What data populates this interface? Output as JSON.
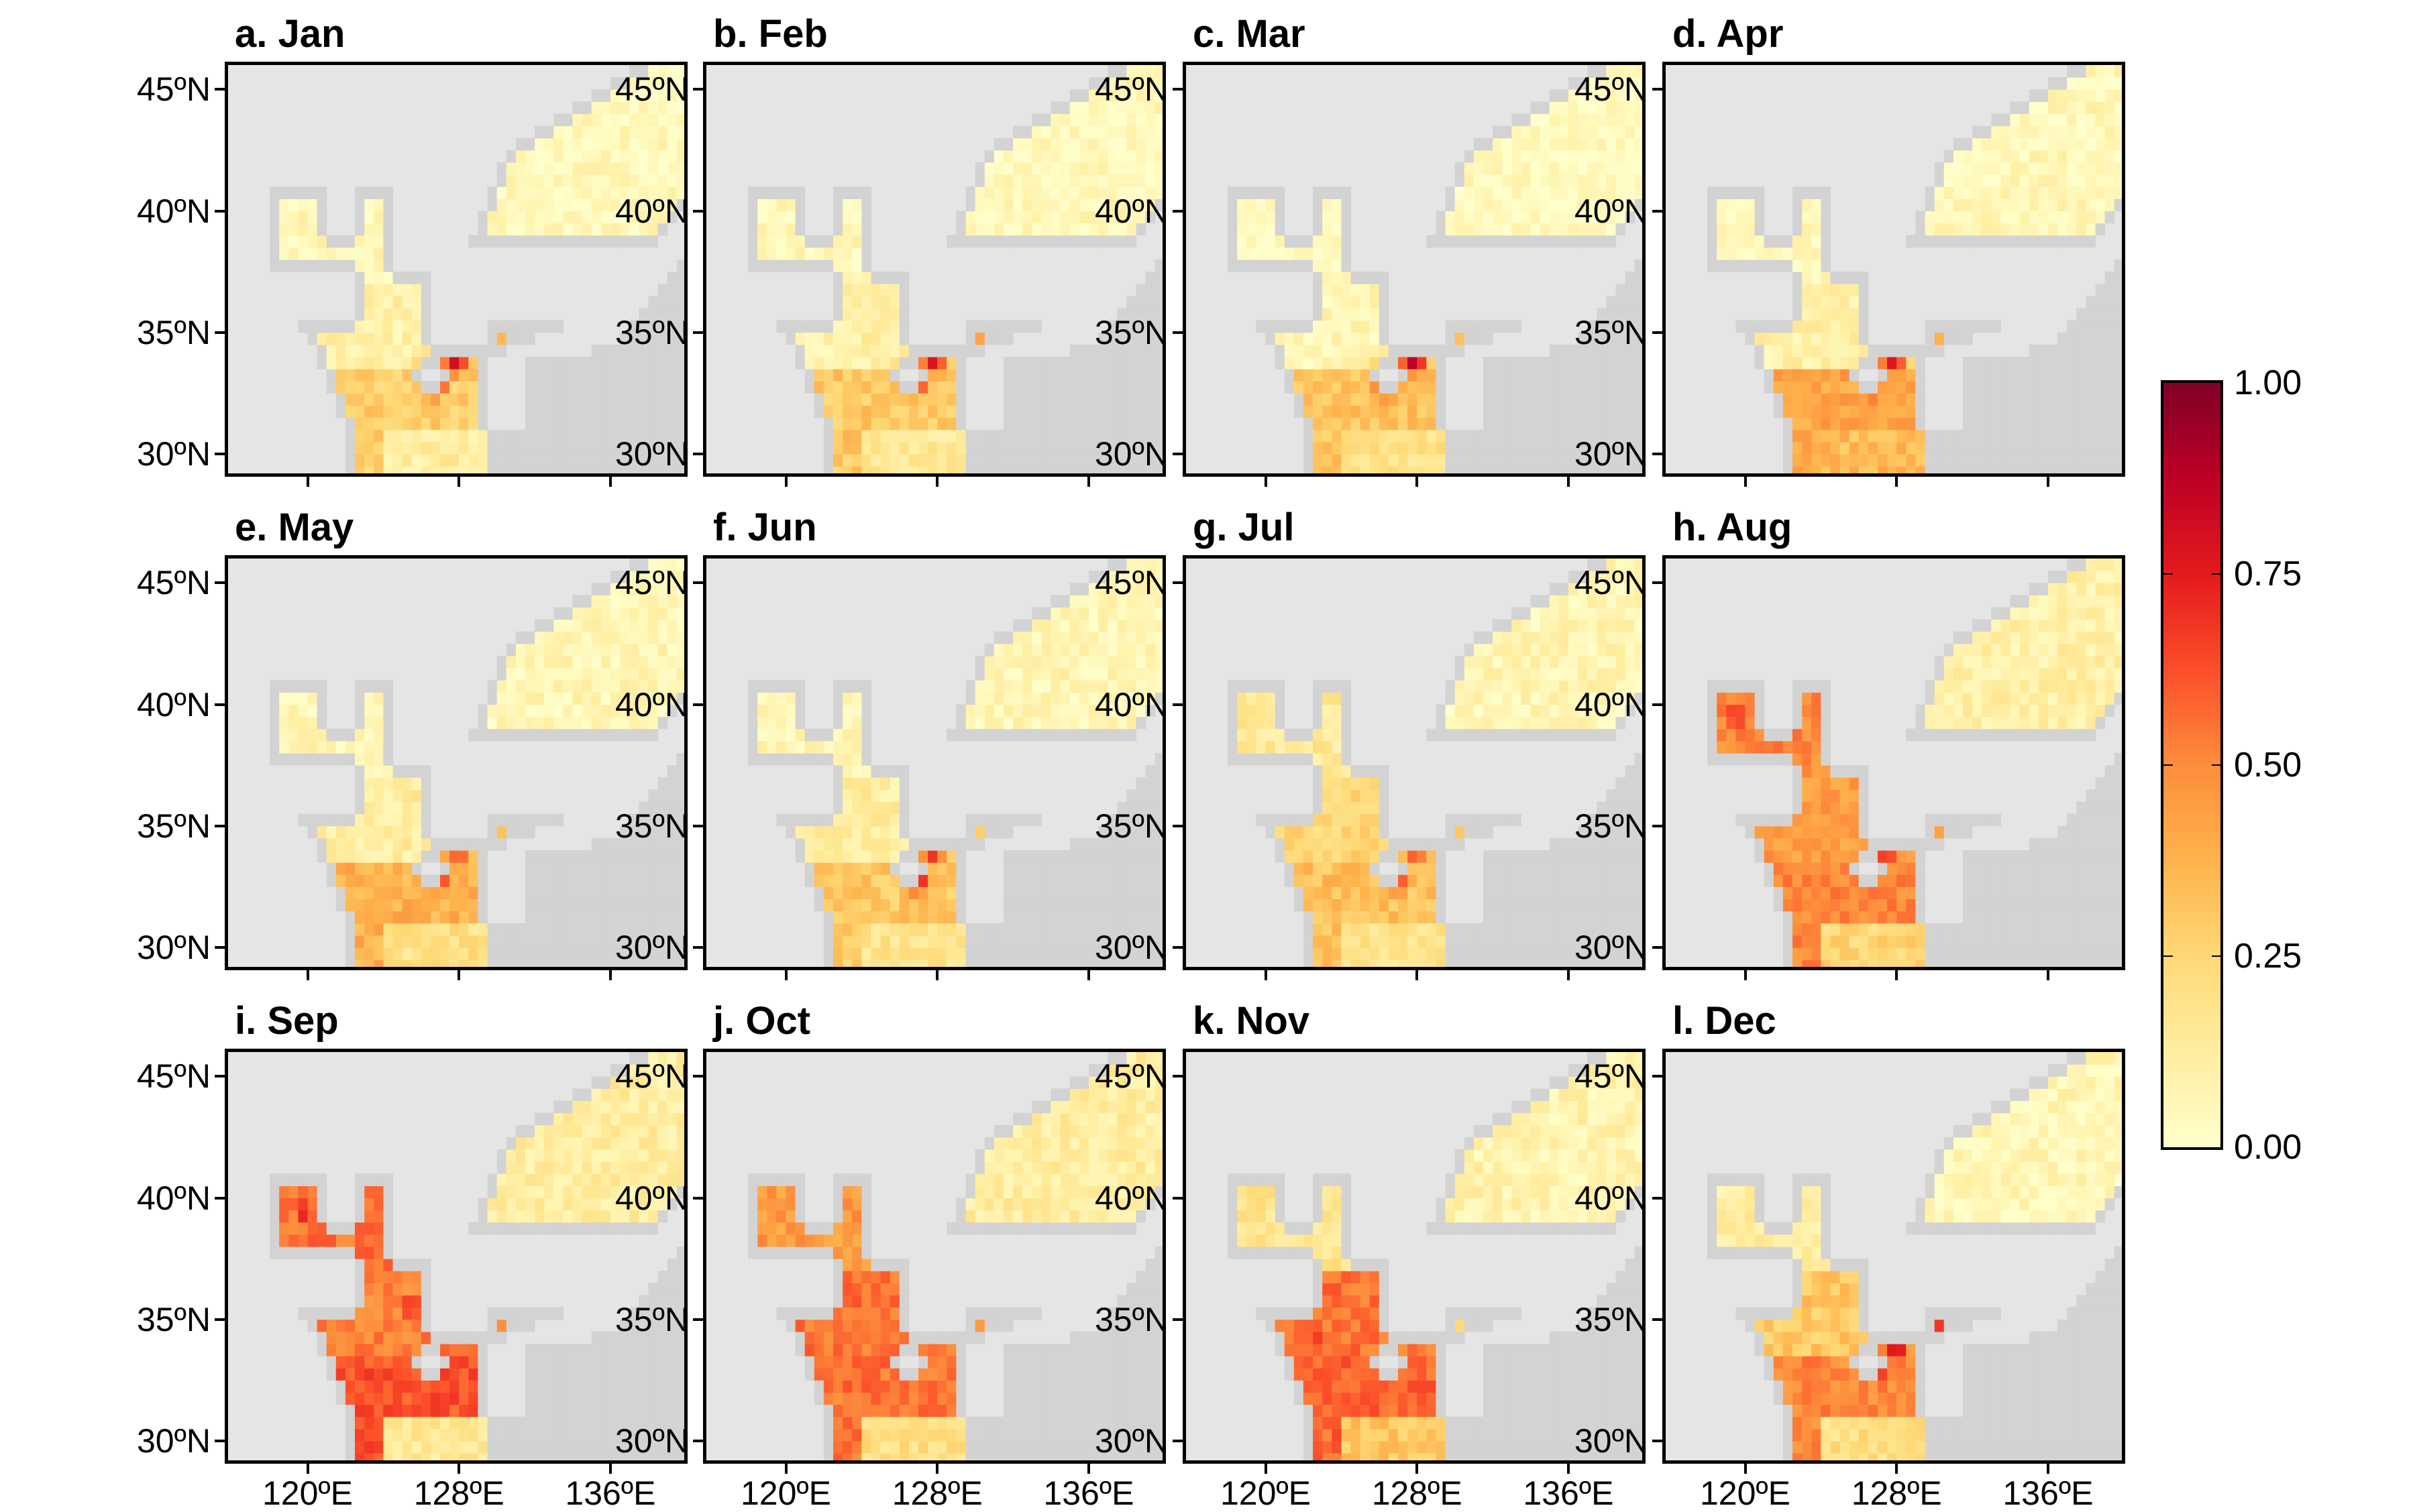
{
  "chart_data": {
    "type": "heatmap",
    "title": "",
    "colorbar": {
      "min": 0,
      "max": 1,
      "ticks": [
        "0.00",
        "0.25",
        "0.50",
        "0.75",
        "1.00"
      ],
      "colormap": [
        "#ffffcc",
        "#ffeda0",
        "#fed976",
        "#feb24c",
        "#fd8d3c",
        "#fc4e2a",
        "#e31a1c",
        "#bd0026",
        "#800026"
      ]
    },
    "x_ticks": [
      {
        "value": 120,
        "label": "120ºE"
      },
      {
        "value": 128,
        "label": "128ºE"
      },
      {
        "value": 136,
        "label": "136ºE"
      }
    ],
    "y_ticks": [
      {
        "value": 45,
        "label": "45ºN"
      },
      {
        "value": 40,
        "label": "40ºN"
      },
      {
        "value": 35,
        "label": "35ºN"
      },
      {
        "value": 30,
        "label": "30ºN"
      }
    ],
    "lon_range": [
      115.8,
      139.9
    ],
    "lat_range": [
      29.2,
      46
    ],
    "grid_resolution_deg": 0.5,
    "colors": {
      "land": "#e5e5e5",
      "ocean_no_data": "#d3d3d3"
    },
    "panels": [
      {
        "title": "a. Jan",
        "base": {
          "bohai": 0.05,
          "yellow": 0.1,
          "ecs": 0.28,
          "ecs_se": 0.12,
          "eastsea_s": 0.22,
          "eastsea_n": 0.04
        },
        "hotspots": [
          [
            126.6,
            33.0,
            0.85
          ],
          [
            127.8,
            34.0,
            0.85
          ],
          [
            129.6,
            35.3,
            0.85
          ]
        ]
      },
      {
        "title": "b. Feb",
        "base": {
          "bohai": 0.04,
          "yellow": 0.1,
          "ecs": 0.3,
          "ecs_se": 0.15,
          "eastsea_s": 0.2,
          "eastsea_n": 0.04
        },
        "hotspots": [
          [
            126.8,
            33.2,
            0.85
          ],
          [
            127.8,
            34.0,
            0.82
          ],
          [
            129.6,
            35.3,
            0.85
          ]
        ]
      },
      {
        "title": "c. Mar",
        "base": {
          "bohai": 0.02,
          "yellow": 0.06,
          "ecs": 0.32,
          "ecs_se": 0.2,
          "eastsea_s": 0.18,
          "eastsea_n": 0.03
        },
        "hotspots": [
          [
            126.4,
            33.0,
            0.8
          ],
          [
            127.8,
            34.0,
            0.9
          ],
          [
            129.6,
            35.3,
            0.85
          ]
        ]
      },
      {
        "title": "d. Apr",
        "base": {
          "bohai": 0.04,
          "yellow": 0.1,
          "ecs": 0.42,
          "ecs_se": 0.35,
          "eastsea_s": 0.22,
          "eastsea_n": 0.05
        },
        "hotspots": [
          [
            126.6,
            32.8,
            0.7
          ],
          [
            127.8,
            34.0,
            0.78
          ],
          [
            129.6,
            35.3,
            0.75
          ]
        ]
      },
      {
        "title": "e. May",
        "base": {
          "bohai": 0.06,
          "yellow": 0.12,
          "ecs": 0.38,
          "ecs_se": 0.2,
          "eastsea_s": 0.2,
          "eastsea_n": 0.06
        },
        "hotspots": [
          [
            127.0,
            33.0,
            0.75
          ],
          [
            128.0,
            34.2,
            0.72
          ],
          [
            129.6,
            35.3,
            0.7
          ]
        ]
      },
      {
        "title": "f. Jun",
        "base": {
          "bohai": 0.06,
          "yellow": 0.12,
          "ecs": 0.3,
          "ecs_se": 0.18,
          "eastsea_s": 0.22,
          "eastsea_n": 0.06
        },
        "hotspots": [
          [
            127.0,
            32.8,
            0.72
          ],
          [
            127.8,
            34.0,
            0.7
          ],
          [
            129.6,
            35.3,
            0.7
          ]
        ]
      },
      {
        "title": "g. Jul",
        "base": {
          "bohai": 0.15,
          "yellow": 0.25,
          "ecs": 0.33,
          "ecs_se": 0.18,
          "eastsea_s": 0.28,
          "eastsea_n": 0.07
        },
        "hotspots": [
          [
            127.0,
            32.8,
            0.62
          ],
          [
            128.0,
            34.0,
            0.65
          ],
          [
            129.6,
            35.3,
            0.65
          ]
        ]
      },
      {
        "title": "h. Aug",
        "base": {
          "bohai": 0.5,
          "yellow": 0.45,
          "ecs": 0.5,
          "ecs_se": 0.25,
          "eastsea_s": 0.38,
          "eastsea_n": 0.1
        },
        "hotspots": [
          [
            119.5,
            39.5,
            0.7
          ],
          [
            127.5,
            33.8,
            0.7
          ],
          [
            129.6,
            35.3,
            0.7
          ]
        ]
      },
      {
        "title": "i. Sep",
        "base": {
          "bohai": 0.55,
          "yellow": 0.52,
          "ecs": 0.62,
          "ecs_se": 0.15,
          "eastsea_s": 0.5,
          "eastsea_n": 0.12
        },
        "hotspots": [
          [
            119.8,
            39.5,
            0.75
          ],
          [
            125.5,
            35.5,
            0.72
          ],
          [
            126.5,
            32.5,
            0.72
          ]
        ]
      },
      {
        "title": "j. Oct",
        "base": {
          "bohai": 0.45,
          "yellow": 0.55,
          "ecs": 0.55,
          "ecs_se": 0.2,
          "eastsea_s": 0.45,
          "eastsea_n": 0.12
        },
        "hotspots": [
          [
            127.8,
            34.0,
            0.62
          ],
          [
            129.6,
            35.3,
            0.6
          ]
        ]
      },
      {
        "title": "k. Nov",
        "base": {
          "bohai": 0.18,
          "yellow": 0.55,
          "ecs": 0.58,
          "ecs_se": 0.3,
          "eastsea_s": 0.3,
          "eastsea_n": 0.08
        },
        "hotspots": [
          [
            122.5,
            34.5,
            0.72
          ],
          [
            126.5,
            32.5,
            0.7
          ],
          [
            128.0,
            34.0,
            0.65
          ]
        ]
      },
      {
        "title": "l. Dec",
        "base": {
          "bohai": 0.12,
          "yellow": 0.3,
          "ecs": 0.5,
          "ecs_se": 0.2,
          "eastsea_s": 0.22,
          "eastsea_n": 0.06
        },
        "hotspots": [
          [
            127.0,
            33.2,
            0.82
          ],
          [
            128.0,
            33.8,
            0.8
          ],
          [
            129.8,
            34.8,
            0.8
          ]
        ]
      }
    ]
  }
}
